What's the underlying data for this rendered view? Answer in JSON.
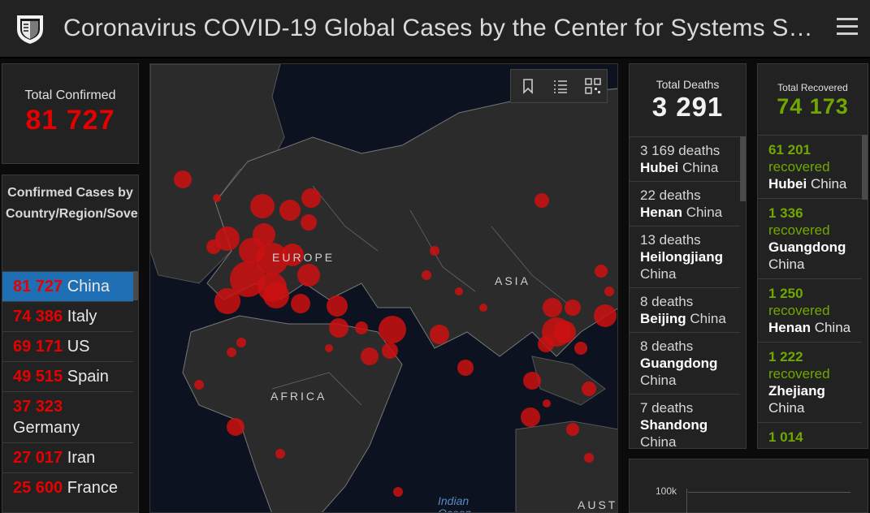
{
  "header": {
    "title": "Coronavirus COVID-19 Global Cases by the Center for Systems S…",
    "logo_icon": "university-shield-icon",
    "menu_icon": "hamburger-menu-icon"
  },
  "total_confirmed": {
    "label": "Total Confirmed",
    "value": "81 727"
  },
  "country_panel": {
    "header": "Confirmed Cases by Country/Region/Sovereignty",
    "items": [
      {
        "count": "81 727",
        "name": "China",
        "selected": true
      },
      {
        "count": "74 386",
        "name": "Italy"
      },
      {
        "count": "69 171",
        "name": "US"
      },
      {
        "count": "49 515",
        "name": "Spain"
      },
      {
        "count": "37 323",
        "name": "Germany"
      },
      {
        "count": "27 017",
        "name": "Iran"
      },
      {
        "count": "25 600",
        "name": "France"
      }
    ]
  },
  "map": {
    "labels": {
      "europe": "EUROPE",
      "asia": "ASIA",
      "africa": "AFRICA",
      "ocean_1": "Indian",
      "ocean_2": "Ocean",
      "aust": "AUST"
    },
    "tools": [
      "bookmark-icon",
      "list-icon",
      "qr-grid-icon"
    ]
  },
  "deaths": {
    "label": "Total Deaths",
    "value": "3 291",
    "items": [
      {
        "count": "3 169 deaths",
        "place": "Hubei",
        "country": "China"
      },
      {
        "count": "22 deaths",
        "place": "Henan",
        "country": "China"
      },
      {
        "count": "13 deaths",
        "place": "Heilongjiang",
        "country": "China"
      },
      {
        "count": "8 deaths",
        "place": "Beijing",
        "country": "China"
      },
      {
        "count": "8 deaths",
        "place": "Guangdong",
        "country": "China"
      },
      {
        "count": "7 deaths",
        "place": "Shandong",
        "country": "China"
      }
    ]
  },
  "recovered": {
    "label": "Total Recovered",
    "value": "74 173",
    "items": [
      {
        "count": "61 201",
        "word": "recovered",
        "place": "Hubei",
        "country": "China"
      },
      {
        "count": "1 336",
        "word": "recovered",
        "place": "Guangdong",
        "country": "China"
      },
      {
        "count": "1 250",
        "word": "recovered",
        "place": "Henan",
        "country": "China"
      },
      {
        "count": "1 222",
        "word": "recovered",
        "place": "Zhejiang",
        "country": "China"
      },
      {
        "count": "1 014",
        "word": "recovered",
        "place": "",
        "country": ""
      }
    ]
  },
  "chart": {
    "tick_label": "100k"
  },
  "colors": {
    "confirmed": "#e60000",
    "recovered": "#70a800",
    "selected": "#1f6fb5",
    "map_bubble": "#cc1010"
  }
}
